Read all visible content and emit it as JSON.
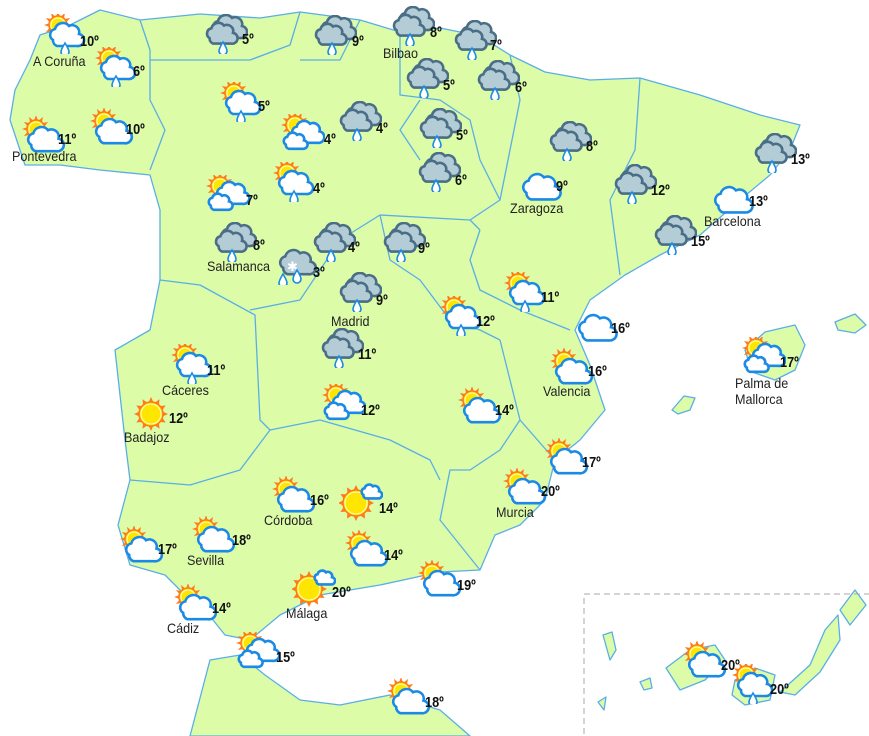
{
  "colors": {
    "land": "#dcfca8",
    "border": "#5aaee8",
    "sea": "#ffffff",
    "cloud_stroke": "#1a8ae6",
    "rain_cloud": "#b4ccd6",
    "sun": "#ffe600",
    "sun_rays": "#ff7a1a"
  },
  "stations": [
    {
      "city": "A Coruña",
      "temp": "10º",
      "icon": "sun-cloud-rain"
    },
    {
      "city": "",
      "temp": "6º",
      "icon": "sun-cloud-rain"
    },
    {
      "city": "Pontevedra",
      "temp": "11º",
      "icon": "sun-cloud"
    },
    {
      "city": "",
      "temp": "10º",
      "icon": "sun-cloud"
    },
    {
      "city": "",
      "temp": "5º",
      "icon": "rain"
    },
    {
      "city": "",
      "temp": "9º",
      "icon": "rain"
    },
    {
      "city": "Bilbao",
      "temp": "8º",
      "icon": "rain"
    },
    {
      "city": "",
      "temp": "7º",
      "icon": "rain"
    },
    {
      "city": "",
      "temp": "5º",
      "icon": "rain"
    },
    {
      "city": "",
      "temp": "6º",
      "icon": "rain"
    },
    {
      "city": "",
      "temp": "5º",
      "icon": "sun-cloud-rain"
    },
    {
      "city": "",
      "temp": "4º",
      "icon": "sun-two-clouds"
    },
    {
      "city": "",
      "temp": "4º",
      "icon": "rain"
    },
    {
      "city": "",
      "temp": "5º",
      "icon": "rain"
    },
    {
      "city": "",
      "temp": "6º",
      "icon": "rain"
    },
    {
      "city": "",
      "temp": "4º",
      "icon": "sun-cloud-rain"
    },
    {
      "city": "",
      "temp": "7º",
      "icon": "sun-two-clouds"
    },
    {
      "city": "Salamanca",
      "temp": "8º",
      "icon": "rain"
    },
    {
      "city": "",
      "temp": "3º",
      "icon": "snow-rain"
    },
    {
      "city": "",
      "temp": "4º",
      "icon": "rain"
    },
    {
      "city": "",
      "temp": "9º",
      "icon": "rain"
    },
    {
      "city": "Madrid",
      "temp": "9º",
      "icon": "rain"
    },
    {
      "city": "Zaragoza",
      "temp": "9º",
      "icon": "cloud"
    },
    {
      "city": "",
      "temp": "8º",
      "icon": "rain"
    },
    {
      "city": "",
      "temp": "12º",
      "icon": "rain"
    },
    {
      "city": "",
      "temp": "13º",
      "icon": "rain"
    },
    {
      "city": "Barcelona",
      "temp": "13º",
      "icon": "cloud"
    },
    {
      "city": "",
      "temp": "15º",
      "icon": "rain"
    },
    {
      "city": "",
      "temp": "11º",
      "icon": "sun-cloud-rain"
    },
    {
      "city": "",
      "temp": "12º",
      "icon": "sun-cloud-rain"
    },
    {
      "city": "",
      "temp": "16º",
      "icon": "cloud"
    },
    {
      "city": "",
      "temp": "11º",
      "icon": "rain"
    },
    {
      "city": "Cáceres",
      "temp": "11º",
      "icon": "sun-cloud-rain"
    },
    {
      "city": "Badajoz",
      "temp": "12º",
      "icon": "sun"
    },
    {
      "city": "",
      "temp": "12º",
      "icon": "sun-two-clouds"
    },
    {
      "city": "",
      "temp": "14º",
      "icon": "sun-cloud"
    },
    {
      "city": "Valencia",
      "temp": "16º",
      "icon": "sun-cloud"
    },
    {
      "city": "Palma de\nMallorca",
      "temp": "17º",
      "icon": "sun-two-clouds"
    },
    {
      "city": "",
      "temp": "17º",
      "icon": "sun-cloud"
    },
    {
      "city": "Murcia",
      "temp": "20º",
      "icon": "sun-cloud"
    },
    {
      "city": "Córdoba",
      "temp": "16º",
      "icon": "sun-cloud"
    },
    {
      "city": "",
      "temp": "14º",
      "icon": "sun-small-cloud"
    },
    {
      "city": "",
      "temp": "17º",
      "icon": "sun-cloud"
    },
    {
      "city": "Sevilla",
      "temp": "18º",
      "icon": "sun-cloud"
    },
    {
      "city": "",
      "temp": "14º",
      "icon": "sun-cloud"
    },
    {
      "city": "",
      "temp": "19º",
      "icon": "sun-cloud"
    },
    {
      "city": "Málaga",
      "temp": "20º",
      "icon": "sun-small-cloud"
    },
    {
      "city": "Cádiz",
      "temp": "14º",
      "icon": "sun-cloud"
    },
    {
      "city": "",
      "temp": "15º",
      "icon": "sun-two-clouds"
    },
    {
      "city": "",
      "temp": "18º",
      "icon": "sun-cloud"
    },
    {
      "city": "",
      "temp": "20º",
      "icon": "sun-cloud"
    },
    {
      "city": "",
      "temp": "20º",
      "icon": "sun-cloud-rain"
    }
  ]
}
